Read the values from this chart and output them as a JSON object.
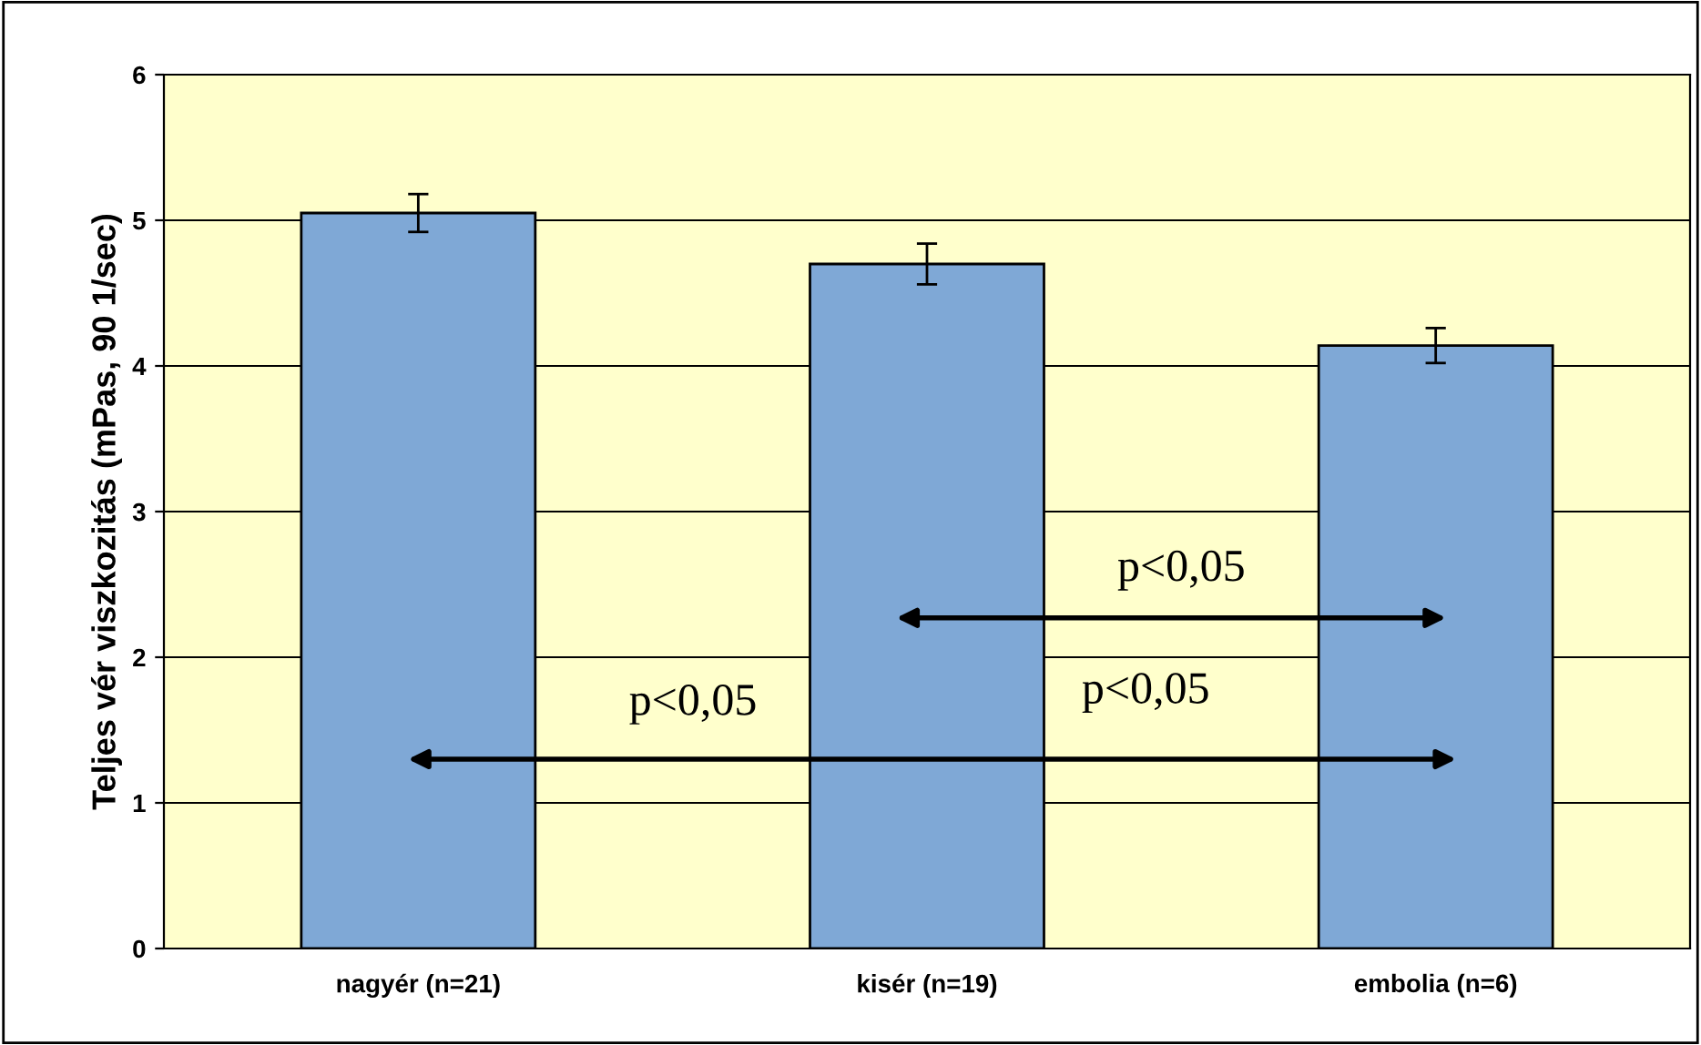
{
  "chart_data": {
    "type": "bar",
    "ylabel": "Teljes vér viszkozitás (mPas, 90 1/sec)",
    "categories": [
      "nagyér (n=21)",
      "kisér (n=19)",
      "embolia (n=6)"
    ],
    "values": [
      5.05,
      4.7,
      4.14
    ],
    "errors": [
      0.13,
      0.14,
      0.12
    ],
    "color": "#7fa8d6",
    "ylim": [
      0,
      6
    ],
    "yticks": [
      0,
      1,
      2,
      3,
      4,
      5,
      6
    ],
    "grid": "y",
    "annotations": [
      "p<0,05",
      "p<0,05",
      "p<0,05"
    ]
  }
}
